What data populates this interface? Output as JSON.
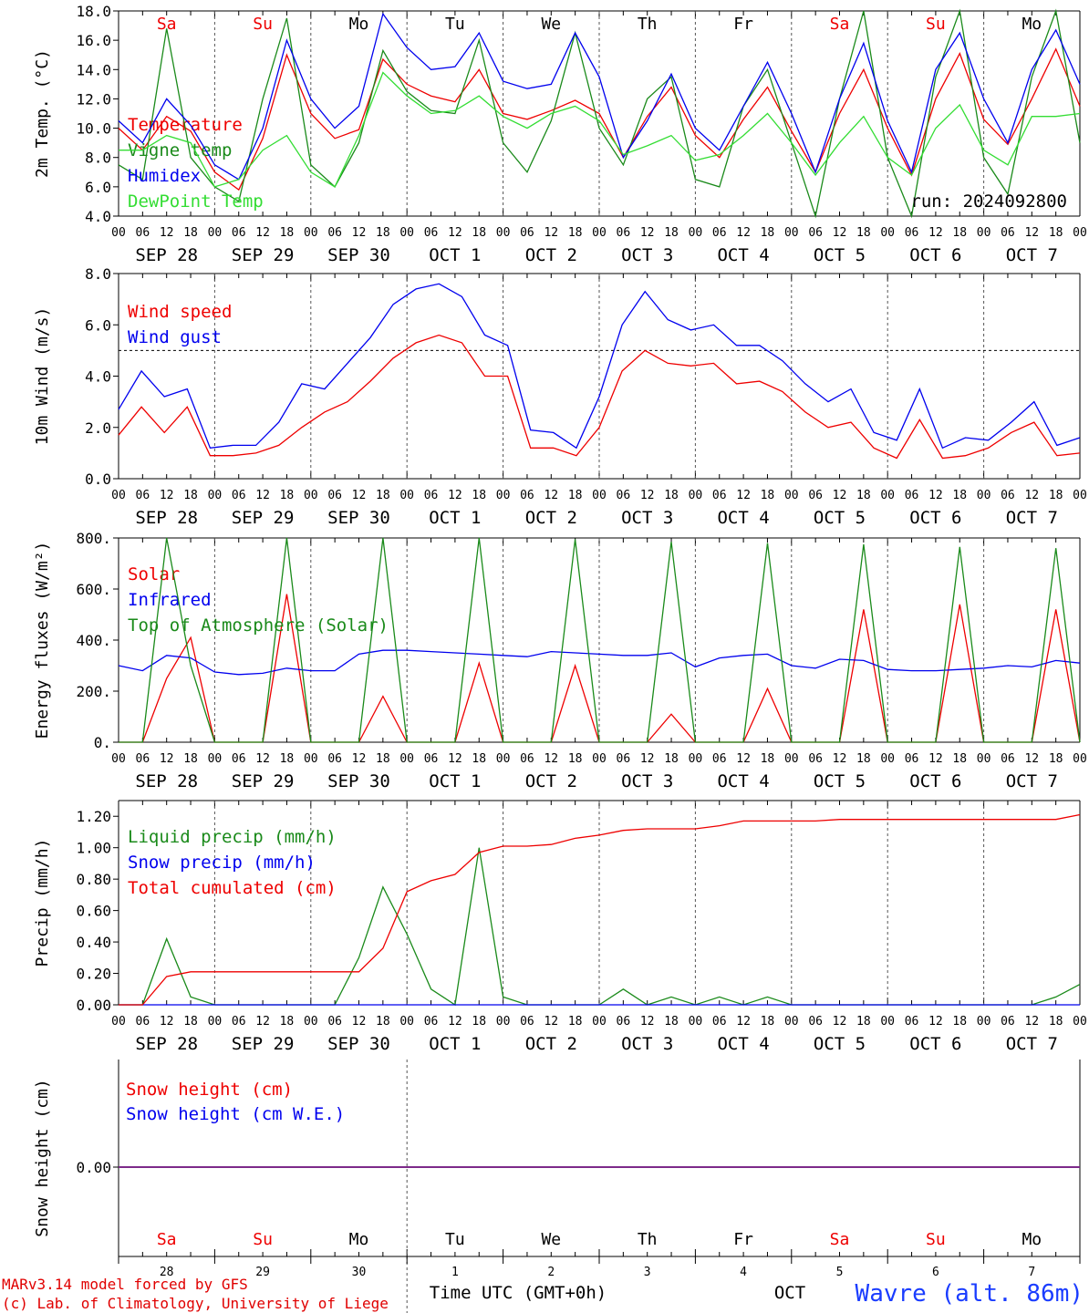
{
  "colors": {
    "red": "#ee0000",
    "blue": "#0000ee",
    "darkgreen": "#1a8a1a",
    "lightgreen": "#33dd33",
    "purple": "#7d2a8a"
  },
  "hour_labels": [
    "00",
    "06",
    "12",
    "18"
  ],
  "date_labels": [
    "SEP 28",
    "SEP 29",
    "SEP 30",
    "OCT  1",
    "OCT  2",
    "OCT  3",
    "OCT  4",
    "OCT  5",
    "OCT  6",
    "OCT  7"
  ],
  "day_names": [
    {
      "label": "Sa",
      "color": "red"
    },
    {
      "label": "Su",
      "color": "red"
    },
    {
      "label": "Mo",
      "color": "black"
    },
    {
      "label": "Tu",
      "color": "black"
    },
    {
      "label": "We",
      "color": "black"
    },
    {
      "label": "Th",
      "color": "black"
    },
    {
      "label": "Fr",
      "color": "black"
    },
    {
      "label": "Sa",
      "color": "red"
    },
    {
      "label": "Su",
      "color": "red"
    },
    {
      "label": "Mo",
      "color": "black"
    }
  ],
  "bottom_day_numbers": [
    "28",
    "29",
    "30",
    "1",
    "2",
    "3",
    "4",
    "5",
    "6",
    "7"
  ],
  "run_label": "run: 2024092800",
  "footer": {
    "model": "MARv3.14 model forced by GFS",
    "credit": "(c) Lab. of Climatology, University of Liege",
    "xlabel": "Time UTC (GMT+0h)",
    "month": "OCT",
    "station": "Wavre (alt. 86m)"
  },
  "chart_data": [
    {
      "type": "line",
      "ylabel": "2m Temp. (°C)",
      "ylim": [
        4.0,
        18.0
      ],
      "yticks": [
        "4.0",
        "6.0",
        "8.0",
        "10.0",
        "12.0",
        "14.0",
        "16.0",
        "18.0"
      ],
      "x": "hours since SEP 28 00 UTC, one point every 6 hours",
      "series": [
        {
          "name": "Temperature",
          "color": "red",
          "values": [
            10.0,
            8.5,
            10.8,
            9.8,
            7.0,
            5.8,
            9.3,
            15.0,
            11.0,
            9.3,
            9.9,
            14.7,
            13.0,
            12.2,
            11.8,
            14.0,
            11.0,
            10.6,
            11.2,
            11.9,
            11.0,
            8.0,
            10.8,
            12.8,
            9.5,
            8.0,
            10.6,
            12.8,
            9.8,
            7.0,
            11.0,
            14.0,
            10.0,
            6.8,
            12.0,
            15.1,
            10.6,
            8.9,
            12.0,
            15.4,
            11.5
          ]
        },
        {
          "name": "Vigne temp",
          "color": "darkgreen",
          "values": [
            7.5,
            6.5,
            16.8,
            8.0,
            6.0,
            5.0,
            12.0,
            17.5,
            7.5,
            6.0,
            9.0,
            15.3,
            12.5,
            11.2,
            11.0,
            16.0,
            9.0,
            7.0,
            10.5,
            16.5,
            10.0,
            7.5,
            12.0,
            13.5,
            6.5,
            6.0,
            11.5,
            14.0,
            9.0,
            3.5,
            12.0,
            18.0,
            8.0,
            4.0,
            13.5,
            18.0,
            8.0,
            5.5,
            13.5,
            18.0,
            9.0
          ]
        },
        {
          "name": "Humidex",
          "color": "blue",
          "values": [
            10.5,
            9.0,
            12.0,
            10.2,
            7.5,
            6.5,
            10.0,
            16.0,
            12.0,
            10.0,
            11.5,
            17.8,
            15.5,
            14.0,
            14.2,
            16.5,
            13.2,
            12.7,
            13.0,
            16.5,
            13.5,
            8.0,
            10.5,
            13.7,
            10.0,
            8.5,
            11.5,
            14.5,
            11.0,
            7.0,
            12.0,
            15.8,
            10.5,
            7.0,
            14.0,
            16.5,
            12.0,
            9.0,
            14.0,
            16.7,
            13.0
          ]
        },
        {
          "name": "DewPoint Temp",
          "color": "lightgreen",
          "values": [
            8.5,
            8.5,
            9.5,
            9.0,
            6.0,
            6.5,
            8.5,
            9.5,
            7.0,
            6.0,
            9.5,
            13.8,
            12.2,
            11.0,
            11.2,
            12.2,
            10.8,
            10.0,
            11.0,
            11.5,
            10.5,
            8.2,
            8.8,
            9.5,
            7.8,
            8.2,
            9.5,
            11.0,
            9.0,
            6.8,
            9.0,
            10.8,
            8.0,
            6.8,
            10.0,
            11.6,
            8.5,
            7.5,
            10.8,
            10.8,
            11.0
          ]
        }
      ]
    },
    {
      "type": "line",
      "ylabel": "10m Wind (m/s)",
      "ylim": [
        0.0,
        8.0
      ],
      "yticks": [
        "0.0",
        "2.0",
        "4.0",
        "6.0",
        "8.0"
      ],
      "reference_line": 5.0,
      "series": [
        {
          "name": "Wind speed",
          "color": "red",
          "values": [
            1.7,
            2.8,
            1.8,
            2.8,
            0.9,
            0.9,
            1.0,
            1.3,
            2.0,
            2.6,
            3.0,
            3.8,
            4.7,
            5.3,
            5.6,
            5.3,
            4.0,
            4.0,
            1.2,
            1.2,
            0.9,
            2.0,
            4.2,
            5.0,
            4.5,
            4.4,
            4.5,
            3.7,
            3.8,
            3.4,
            2.6,
            2.0,
            2.2,
            1.2,
            0.8,
            2.3,
            0.8,
            0.9,
            1.2,
            1.8,
            2.2,
            0.9,
            1.0
          ]
        },
        {
          "name": "Wind gust",
          "color": "blue",
          "values": [
            2.7,
            4.2,
            3.2,
            3.5,
            1.2,
            1.3,
            1.3,
            2.2,
            3.7,
            3.5,
            4.5,
            5.5,
            6.8,
            7.4,
            7.6,
            7.1,
            5.6,
            5.2,
            1.9,
            1.8,
            1.2,
            3.2,
            6.0,
            7.3,
            6.2,
            5.8,
            6.0,
            5.2,
            5.2,
            4.6,
            3.7,
            3.0,
            3.5,
            1.8,
            1.5,
            3.5,
            1.2,
            1.6,
            1.5,
            2.2,
            3.0,
            1.3,
            1.6
          ]
        }
      ]
    },
    {
      "type": "line",
      "ylabel": "Energy fluxes (W/m²)",
      "ylim": [
        0,
        800
      ],
      "yticks": [
        "0.",
        "200.",
        "400.",
        "600.",
        "800."
      ],
      "series": [
        {
          "name": "Solar",
          "color": "red",
          "values": [
            0,
            0,
            250,
            410,
            0,
            0,
            0,
            580,
            0,
            0,
            0,
            180,
            0,
            0,
            0,
            310,
            0,
            0,
            0,
            300,
            0,
            0,
            0,
            110,
            0,
            0,
            0,
            210,
            0,
            0,
            0,
            520,
            0,
            0,
            0,
            540,
            0,
            0,
            0,
            520,
            0
          ]
        },
        {
          "name": "Infrared",
          "color": "blue",
          "values": [
            300,
            280,
            340,
            330,
            275,
            265,
            270,
            290,
            280,
            280,
            345,
            360,
            360,
            355,
            350,
            345,
            340,
            335,
            355,
            350,
            345,
            340,
            340,
            350,
            295,
            330,
            340,
            345,
            300,
            290,
            325,
            320,
            285,
            280,
            280,
            285,
            290,
            300,
            295,
            320,
            310
          ]
        },
        {
          "name": "Top of Atmosphere (Solar)",
          "color": "darkgreen",
          "values": [
            0,
            0,
            820,
            300,
            0,
            0,
            0,
            810,
            0,
            0,
            0,
            800,
            0,
            0,
            0,
            800,
            0,
            0,
            0,
            795,
            0,
            0,
            0,
            785,
            0,
            0,
            0,
            780,
            0,
            0,
            0,
            775,
            0,
            0,
            0,
            765,
            0,
            0,
            0,
            760,
            0
          ]
        }
      ]
    },
    {
      "type": "line",
      "ylabel": "Precip (mm/h)",
      "ylim": [
        0.0,
        1.3
      ],
      "yticks": [
        "0.00",
        "0.20",
        "0.40",
        "0.60",
        "0.80",
        "1.00",
        "1.20"
      ],
      "series": [
        {
          "name": "Liquid precip (mm/h)",
          "color": "darkgreen",
          "values": [
            0,
            0,
            0.42,
            0.05,
            0,
            0,
            0,
            0,
            0,
            0,
            0.3,
            0.75,
            0.45,
            0.1,
            0,
            1.0,
            0.05,
            0,
            0,
            0,
            0,
            0.1,
            0,
            0.05,
            0,
            0.05,
            0,
            0.05,
            0,
            0,
            0,
            0,
            0,
            0,
            0,
            0,
            0,
            0,
            0,
            0.05,
            0.13
          ]
        },
        {
          "name": "Snow precip (mm/h)",
          "color": "blue",
          "values": [
            0,
            0,
            0,
            0,
            0,
            0,
            0,
            0,
            0,
            0,
            0,
            0,
            0,
            0,
            0,
            0,
            0,
            0,
            0,
            0,
            0,
            0,
            0,
            0,
            0,
            0,
            0,
            0,
            0,
            0,
            0,
            0,
            0,
            0,
            0,
            0,
            0,
            0,
            0,
            0,
            0
          ]
        },
        {
          "name": "Total cumulated (cm)",
          "color": "red",
          "values": [
            0,
            0,
            0.18,
            0.21,
            0.21,
            0.21,
            0.21,
            0.21,
            0.21,
            0.21,
            0.21,
            0.36,
            0.72,
            0.79,
            0.83,
            0.97,
            1.01,
            1.01,
            1.02,
            1.06,
            1.08,
            1.11,
            1.12,
            1.12,
            1.12,
            1.14,
            1.17,
            1.17,
            1.17,
            1.17,
            1.18,
            1.18,
            1.18,
            1.18,
            1.18,
            1.18,
            1.18,
            1.18,
            1.18,
            1.18,
            1.21
          ]
        }
      ]
    },
    {
      "type": "line",
      "ylabel": "Snow height (cm)",
      "yticks": [
        "0.00"
      ],
      "series": [
        {
          "name": "Snow height (cm)",
          "color": "red",
          "values": [
            0,
            0,
            0,
            0,
            0,
            0,
            0,
            0,
            0,
            0,
            0
          ]
        },
        {
          "name": "Snow height (cm W.E.)",
          "color": "blue",
          "values": [
            0,
            0,
            0,
            0,
            0,
            0,
            0,
            0,
            0,
            0,
            0
          ]
        }
      ]
    }
  ]
}
